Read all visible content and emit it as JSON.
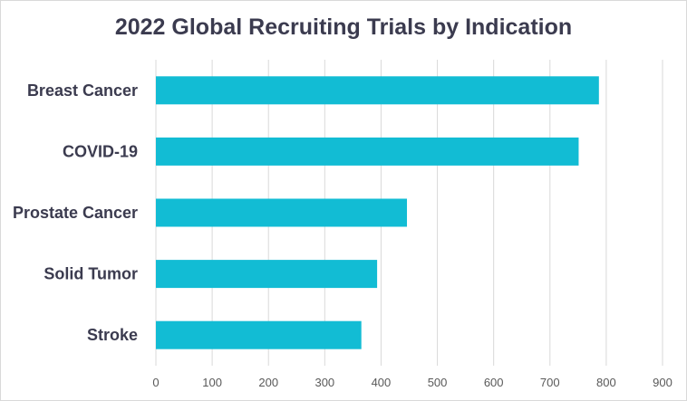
{
  "chart_data": {
    "type": "bar",
    "orientation": "horizontal",
    "title": "2022 Global Recruiting Trials by Indication",
    "xlabel": "",
    "ylabel": "",
    "categories": [
      "Breast Cancer",
      "COVID-19",
      "Prostate Cancer",
      "Solid Tumor",
      "Stroke"
    ],
    "values": [
      787,
      751,
      446,
      393,
      365
    ],
    "xlim": [
      0,
      900
    ],
    "x_ticks": [
      "0",
      "100",
      "200",
      "300",
      "400",
      "500",
      "600",
      "700",
      "800",
      "900"
    ],
    "grid": true,
    "legend": "none",
    "bar_color": "#12bcd4",
    "grid_color": "#d9d9d9",
    "title_color": "#3b3b4f"
  }
}
